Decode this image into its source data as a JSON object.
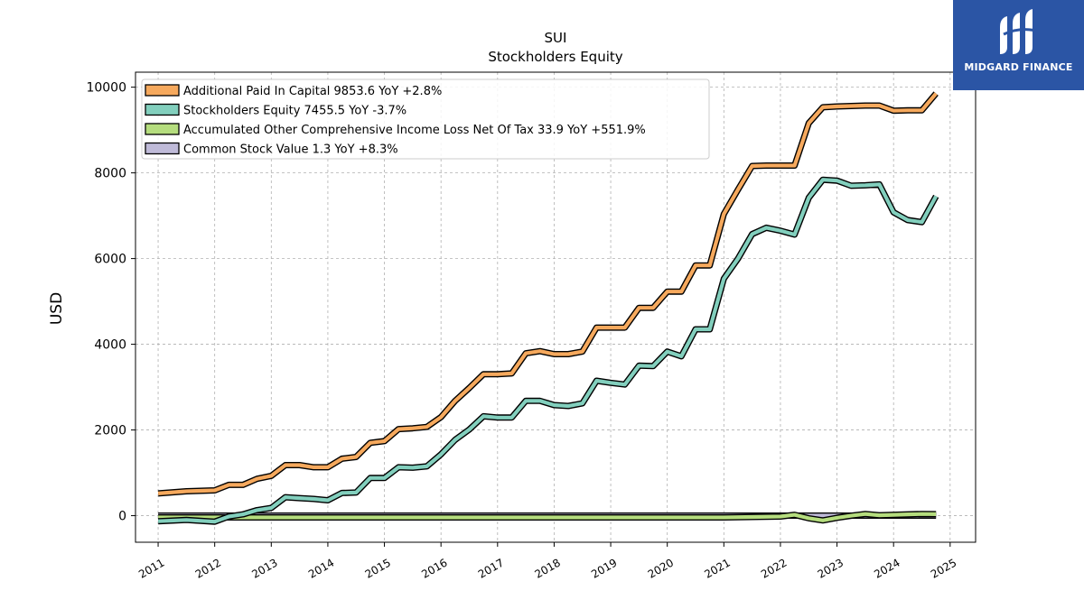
{
  "chart_data": {
    "type": "line",
    "title": "SUI",
    "subtitle": "Stockholders  Equity",
    "xlabel": "",
    "ylabel": "USD",
    "xlim": [
      2010.6,
      2025.45
    ],
    "ylim": [
      -620,
      10350
    ],
    "yticks": [
      0,
      2000,
      4000,
      6000,
      8000,
      10000
    ],
    "xticks": [
      "2011",
      "2012",
      "2013",
      "2014",
      "2015",
      "2016",
      "2017",
      "2018",
      "2019",
      "2020",
      "2021",
      "2022",
      "2023",
      "2024",
      "2025"
    ],
    "grid": true,
    "legend_position": "top-left",
    "series": [
      {
        "name": "Additional Paid In Capital  9853.6 YoY +2.8%",
        "color": "#f6a95d",
        "points": [
          [
            2011.0,
            520
          ],
          [
            2011.5,
            570
          ],
          [
            2012.0,
            590
          ],
          [
            2012.25,
            720
          ],
          [
            2012.5,
            720
          ],
          [
            2012.75,
            860
          ],
          [
            2013.0,
            930
          ],
          [
            2013.25,
            1180
          ],
          [
            2013.5,
            1180
          ],
          [
            2013.75,
            1130
          ],
          [
            2014.0,
            1130
          ],
          [
            2014.25,
            1330
          ],
          [
            2014.5,
            1370
          ],
          [
            2014.75,
            1700
          ],
          [
            2015.0,
            1740
          ],
          [
            2015.25,
            2020
          ],
          [
            2015.5,
            2040
          ],
          [
            2015.75,
            2070
          ],
          [
            2016.0,
            2300
          ],
          [
            2016.25,
            2680
          ],
          [
            2016.5,
            2980
          ],
          [
            2016.75,
            3300
          ],
          [
            2017.0,
            3300
          ],
          [
            2017.25,
            3320
          ],
          [
            2017.5,
            3790
          ],
          [
            2017.75,
            3840
          ],
          [
            2018.0,
            3770
          ],
          [
            2018.25,
            3770
          ],
          [
            2018.5,
            3830
          ],
          [
            2018.75,
            4390
          ],
          [
            2019.0,
            4390
          ],
          [
            2019.25,
            4390
          ],
          [
            2019.5,
            4850
          ],
          [
            2019.75,
            4850
          ],
          [
            2020.0,
            5230
          ],
          [
            2020.25,
            5230
          ],
          [
            2020.5,
            5840
          ],
          [
            2020.75,
            5840
          ],
          [
            2021.0,
            7040
          ],
          [
            2021.25,
            7610
          ],
          [
            2021.5,
            8160
          ],
          [
            2021.75,
            8170
          ],
          [
            2022.0,
            8170
          ],
          [
            2022.25,
            8170
          ],
          [
            2022.5,
            9160
          ],
          [
            2022.75,
            9530
          ],
          [
            2023.0,
            9550
          ],
          [
            2023.25,
            9560
          ],
          [
            2023.5,
            9570
          ],
          [
            2023.75,
            9570
          ],
          [
            2024.0,
            9450
          ],
          [
            2024.25,
            9460
          ],
          [
            2024.5,
            9460
          ],
          [
            2024.75,
            9853.6
          ]
        ]
      },
      {
        "name": "Stockholders Equity  7455.5 YoY -3.7%",
        "color": "#82cfbd",
        "points": [
          [
            2011.0,
            -130
          ],
          [
            2011.5,
            -100
          ],
          [
            2012.0,
            -140
          ],
          [
            2012.25,
            -20
          ],
          [
            2012.5,
            30
          ],
          [
            2012.75,
            130
          ],
          [
            2013.0,
            180
          ],
          [
            2013.25,
            430
          ],
          [
            2013.5,
            410
          ],
          [
            2013.75,
            390
          ],
          [
            2014.0,
            360
          ],
          [
            2014.25,
            530
          ],
          [
            2014.5,
            540
          ],
          [
            2014.75,
            880
          ],
          [
            2015.0,
            880
          ],
          [
            2015.25,
            1130
          ],
          [
            2015.5,
            1120
          ],
          [
            2015.75,
            1150
          ],
          [
            2016.0,
            1430
          ],
          [
            2016.25,
            1770
          ],
          [
            2016.5,
            2010
          ],
          [
            2016.75,
            2320
          ],
          [
            2017.0,
            2290
          ],
          [
            2017.25,
            2290
          ],
          [
            2017.5,
            2680
          ],
          [
            2017.75,
            2680
          ],
          [
            2018.0,
            2580
          ],
          [
            2018.25,
            2560
          ],
          [
            2018.5,
            2620
          ],
          [
            2018.75,
            3150
          ],
          [
            2019.0,
            3100
          ],
          [
            2019.25,
            3060
          ],
          [
            2019.5,
            3500
          ],
          [
            2019.75,
            3490
          ],
          [
            2020.0,
            3830
          ],
          [
            2020.25,
            3720
          ],
          [
            2020.5,
            4350
          ],
          [
            2020.75,
            4350
          ],
          [
            2021.0,
            5530
          ],
          [
            2021.25,
            6000
          ],
          [
            2021.5,
            6570
          ],
          [
            2021.75,
            6720
          ],
          [
            2022.0,
            6650
          ],
          [
            2022.25,
            6560
          ],
          [
            2022.5,
            7420
          ],
          [
            2022.75,
            7840
          ],
          [
            2023.0,
            7820
          ],
          [
            2023.25,
            7700
          ],
          [
            2023.5,
            7710
          ],
          [
            2023.75,
            7730
          ],
          [
            2024.0,
            7080
          ],
          [
            2024.25,
            6900
          ],
          [
            2024.5,
            6850
          ],
          [
            2024.75,
            7455.5
          ]
        ]
      },
      {
        "name": "Accumulated Other Comprehensive Income Loss Net Of Tax  33.9 YoY +551.9%",
        "color": "#b5dd7e",
        "points": [
          [
            2011.0,
            -40
          ],
          [
            2012.0,
            -40
          ],
          [
            2013.0,
            -40
          ],
          [
            2014.0,
            -40
          ],
          [
            2015.0,
            -40
          ],
          [
            2016.0,
            -40
          ],
          [
            2017.0,
            -40
          ],
          [
            2018.0,
            -40
          ],
          [
            2019.0,
            -40
          ],
          [
            2020.0,
            -40
          ],
          [
            2021.0,
            -40
          ],
          [
            2022.0,
            -20
          ],
          [
            2022.25,
            20
          ],
          [
            2022.5,
            -60
          ],
          [
            2022.75,
            -110
          ],
          [
            2023.0,
            -50
          ],
          [
            2023.25,
            0
          ],
          [
            2023.5,
            40
          ],
          [
            2023.75,
            10
          ],
          [
            2024.0,
            20
          ],
          [
            2024.25,
            30
          ],
          [
            2024.5,
            40
          ],
          [
            2024.75,
            33.9
          ]
        ]
      },
      {
        "name": "Common Stock Value  1.3 YoY +8.3%",
        "color": "#bfbad8",
        "points": [
          [
            2011.0,
            1
          ],
          [
            2012.0,
            1
          ],
          [
            2013.0,
            1
          ],
          [
            2014.0,
            1
          ],
          [
            2015.0,
            1
          ],
          [
            2016.0,
            1
          ],
          [
            2017.0,
            1
          ],
          [
            2018.0,
            1
          ],
          [
            2019.0,
            1
          ],
          [
            2020.0,
            1
          ],
          [
            2021.0,
            1.1
          ],
          [
            2022.0,
            1.2
          ],
          [
            2023.0,
            1.2
          ],
          [
            2024.0,
            1.2
          ],
          [
            2024.75,
            1.3
          ]
        ]
      }
    ]
  },
  "branding": {
    "logo_text": "MIDGARD FINANCE",
    "logo_color": "#2b55a5"
  }
}
